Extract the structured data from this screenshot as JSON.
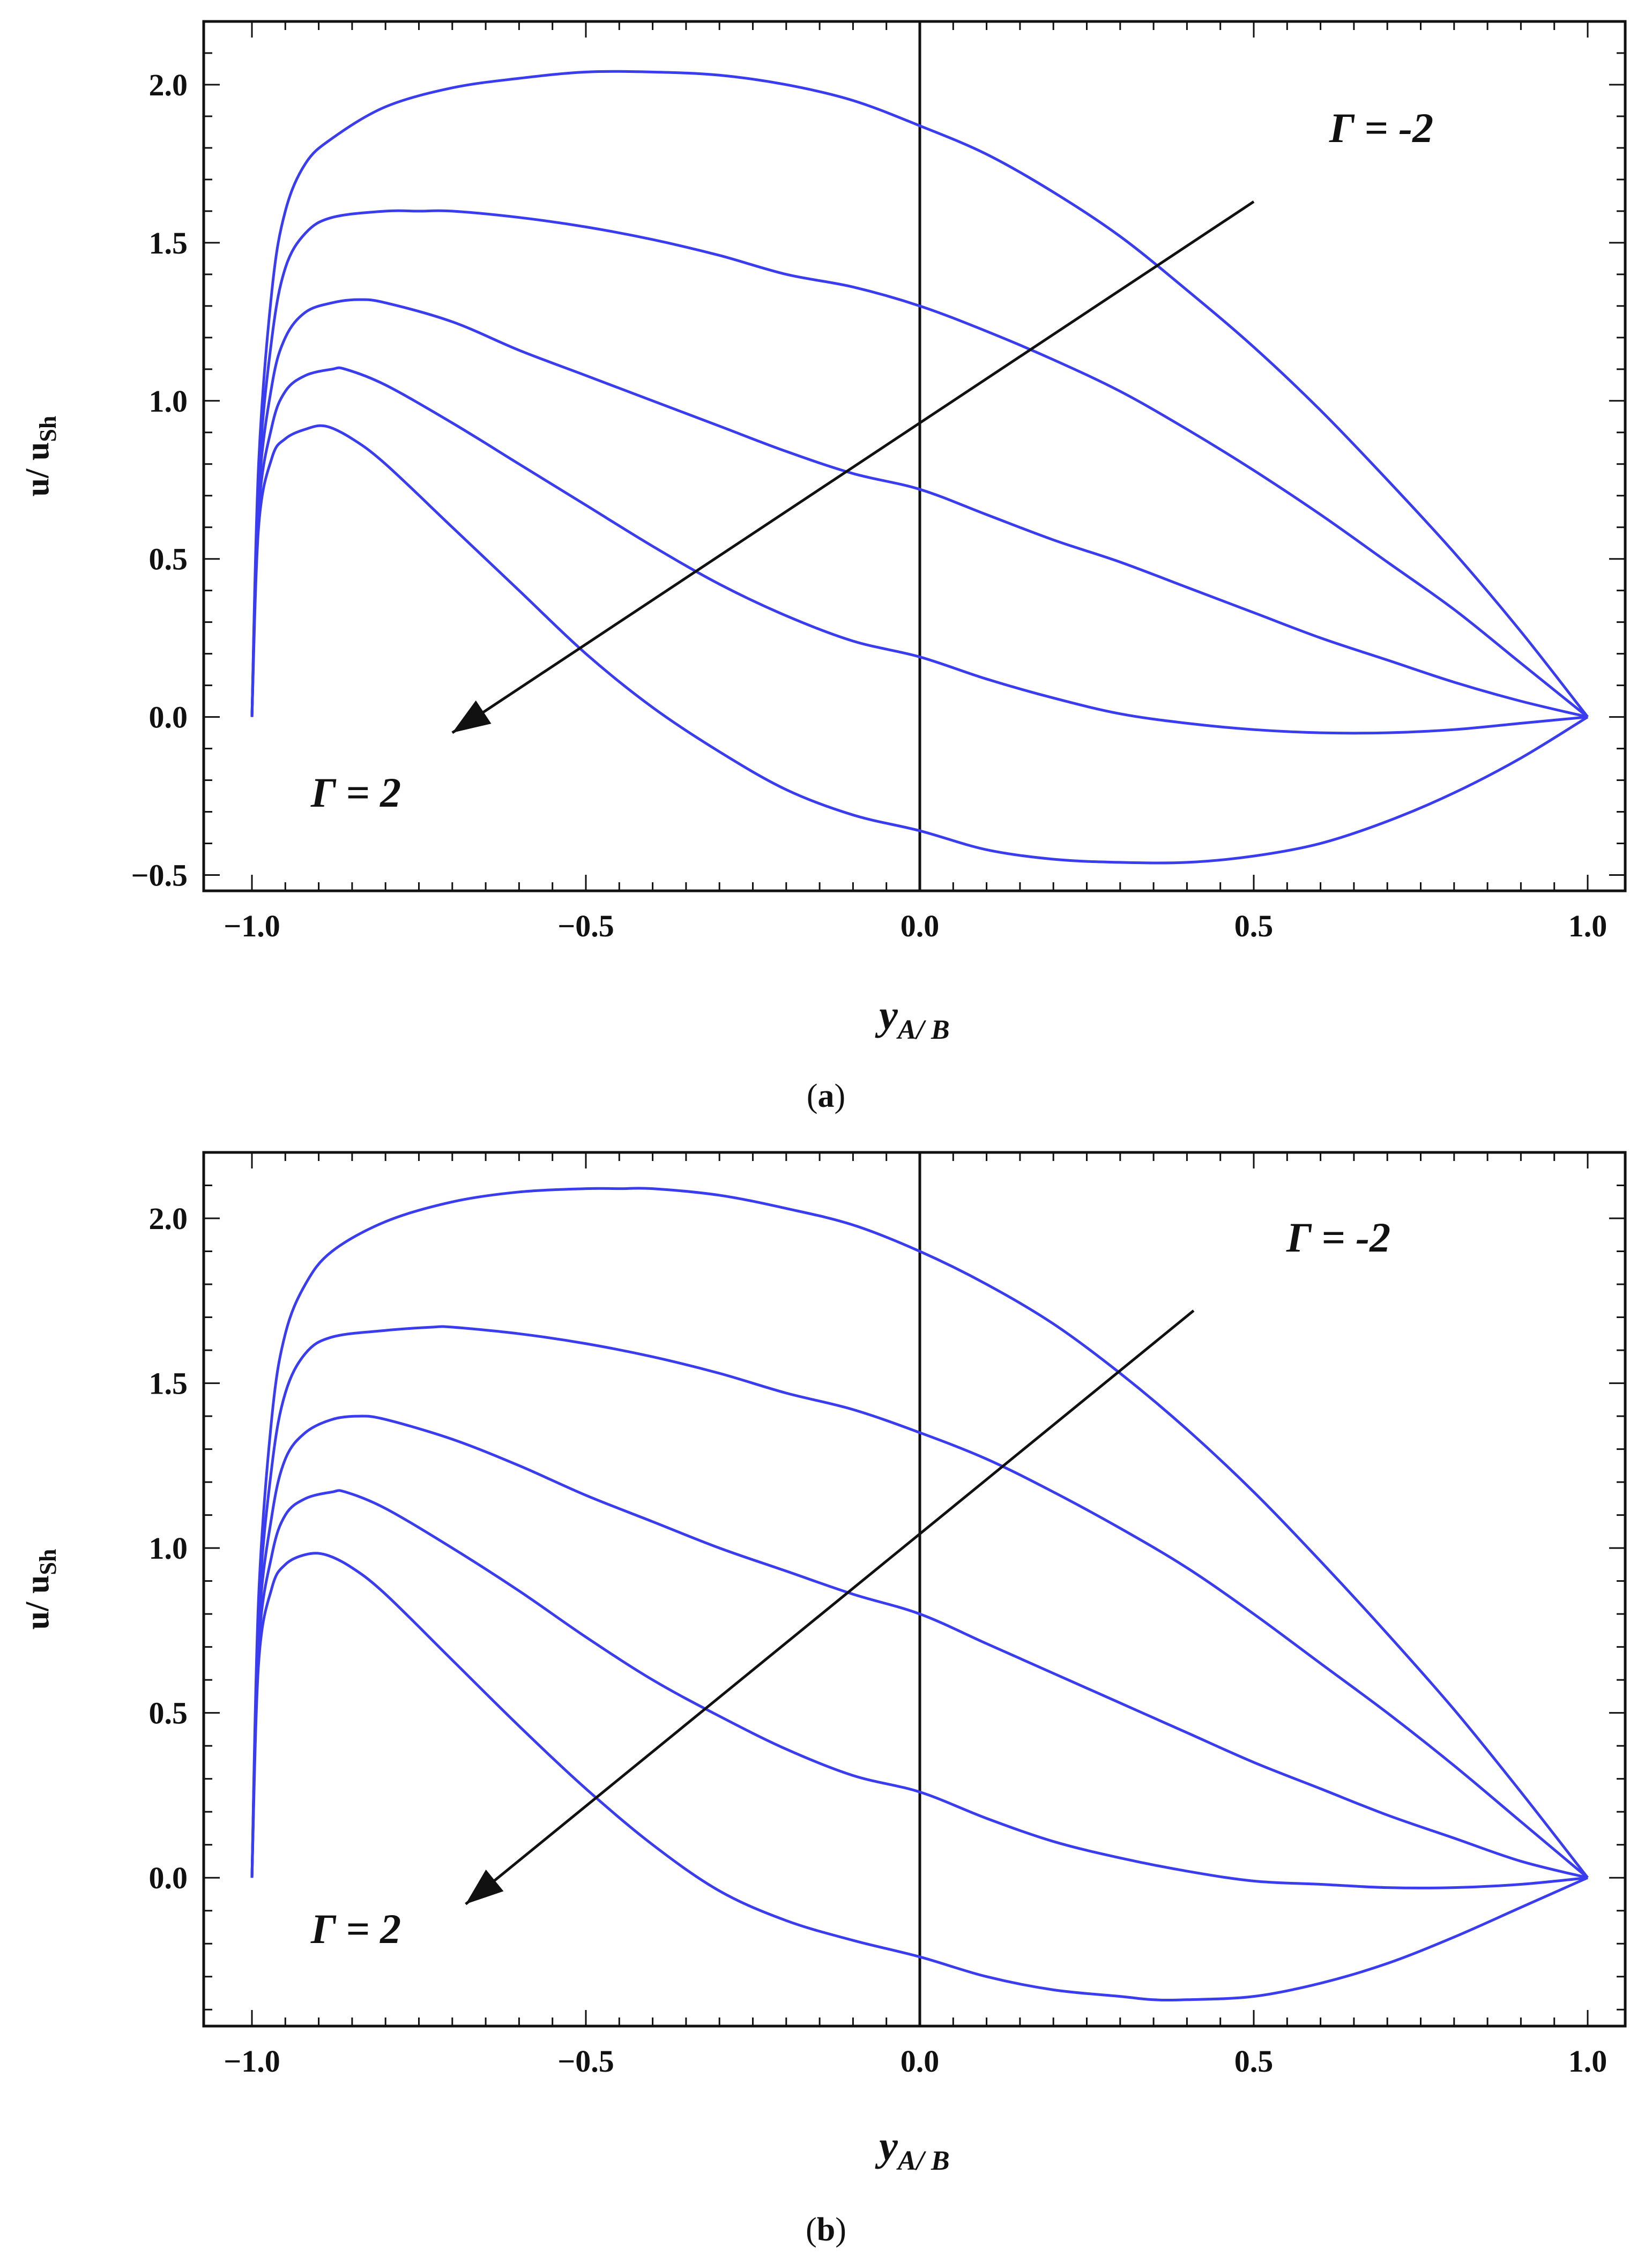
{
  "chart_data": [
    {
      "type": "line",
      "panel_label": "a",
      "caption_prefix": "(",
      "caption_suffix": ")",
      "xlabel": {
        "main": "y",
        "sub": "A/ B"
      },
      "ylabel": {
        "main": "u/ u",
        "sub": "Sh"
      },
      "xlim": [
        -1.0,
        1.0
      ],
      "ylim": [
        -0.55,
        2.2
      ],
      "xticks": [
        "−1.0",
        "−0.5",
        "0.0",
        "0.5",
        "1.0"
      ],
      "xtick_values": [
        -1.0,
        -0.5,
        0.0,
        0.5,
        1.0
      ],
      "yticks": [
        "−0.5",
        "0.0",
        "0.5",
        "1.0",
        "1.5",
        "2.0"
      ],
      "ytick_values": [
        -0.5,
        0.0,
        0.5,
        1.0,
        1.5,
        2.0
      ],
      "grid": false,
      "line_color": "#3a3cf0",
      "annotations": {
        "top": "Γ = -2",
        "bottom": "Γ = 2"
      },
      "arrow": {
        "from": [
          0.5,
          1.63
        ],
        "to": [
          -0.7,
          -0.05
        ]
      },
      "series": [
        {
          "x": [
            -1.0,
            -0.99,
            -0.97,
            -0.95,
            -0.92,
            -0.88,
            -0.8,
            -0.7,
            -0.6,
            -0.5,
            -0.4,
            -0.3,
            -0.2,
            -0.1,
            0.0,
            0.1,
            0.2,
            0.3,
            0.4,
            0.5,
            0.6,
            0.7,
            0.8,
            0.9,
            1.0
          ],
          "y": [
            0.0,
            0.8,
            1.35,
            1.6,
            1.75,
            1.83,
            1.93,
            1.99,
            2.02,
            2.04,
            2.04,
            2.03,
            2.0,
            1.95,
            1.87,
            1.78,
            1.66,
            1.52,
            1.35,
            1.17,
            0.97,
            0.75,
            0.52,
            0.27,
            0.0
          ]
        },
        {
          "x": [
            -1.0,
            -0.99,
            -0.97,
            -0.95,
            -0.92,
            -0.88,
            -0.8,
            -0.75,
            -0.7,
            -0.6,
            -0.5,
            -0.4,
            -0.3,
            -0.2,
            -0.1,
            0.0,
            0.1,
            0.2,
            0.3,
            0.4,
            0.5,
            0.6,
            0.7,
            0.8,
            0.9,
            1.0
          ],
          "y": [
            0.0,
            0.75,
            1.2,
            1.42,
            1.53,
            1.58,
            1.6,
            1.6,
            1.6,
            1.58,
            1.55,
            1.51,
            1.46,
            1.4,
            1.36,
            1.3,
            1.22,
            1.13,
            1.03,
            0.91,
            0.78,
            0.64,
            0.49,
            0.34,
            0.17,
            0.0
          ]
        },
        {
          "x": [
            -1.0,
            -0.99,
            -0.97,
            -0.95,
            -0.92,
            -0.88,
            -0.84,
            -0.8,
            -0.7,
            -0.6,
            -0.5,
            -0.4,
            -0.3,
            -0.2,
            -0.1,
            0.0,
            0.1,
            0.2,
            0.3,
            0.4,
            0.5,
            0.6,
            0.7,
            0.8,
            0.9,
            1.0
          ],
          "y": [
            0.0,
            0.7,
            1.05,
            1.2,
            1.28,
            1.31,
            1.32,
            1.31,
            1.25,
            1.16,
            1.08,
            1.0,
            0.92,
            0.84,
            0.77,
            0.72,
            0.64,
            0.56,
            0.49,
            0.41,
            0.33,
            0.25,
            0.18,
            0.11,
            0.05,
            0.0
          ]
        },
        {
          "x": [
            -1.0,
            -0.99,
            -0.97,
            -0.95,
            -0.92,
            -0.88,
            -0.86,
            -0.8,
            -0.7,
            -0.6,
            -0.5,
            -0.4,
            -0.3,
            -0.2,
            -0.1,
            0.0,
            0.1,
            0.2,
            0.3,
            0.4,
            0.5,
            0.6,
            0.7,
            0.8,
            0.9,
            1.0
          ],
          "y": [
            0.0,
            0.65,
            0.92,
            1.03,
            1.08,
            1.1,
            1.1,
            1.05,
            0.93,
            0.8,
            0.67,
            0.54,
            0.42,
            0.32,
            0.24,
            0.19,
            0.12,
            0.06,
            0.01,
            -0.02,
            -0.04,
            -0.05,
            -0.05,
            -0.04,
            -0.02,
            0.0
          ]
        },
        {
          "x": [
            -1.0,
            -0.99,
            -0.97,
            -0.95,
            -0.92,
            -0.89,
            -0.85,
            -0.8,
            -0.7,
            -0.6,
            -0.5,
            -0.4,
            -0.3,
            -0.2,
            -0.1,
            0.0,
            0.1,
            0.2,
            0.3,
            0.4,
            0.5,
            0.6,
            0.7,
            0.8,
            0.9,
            1.0
          ],
          "y": [
            0.0,
            0.6,
            0.82,
            0.88,
            0.91,
            0.92,
            0.88,
            0.8,
            0.6,
            0.4,
            0.2,
            0.03,
            -0.11,
            -0.23,
            -0.31,
            -0.36,
            -0.42,
            -0.45,
            -0.46,
            -0.46,
            -0.44,
            -0.4,
            -0.33,
            -0.24,
            -0.13,
            0.0
          ]
        }
      ]
    },
    {
      "type": "line",
      "panel_label": "b",
      "caption_prefix": "(",
      "caption_suffix": ")",
      "xlabel": {
        "main": "y",
        "sub": "A/ B"
      },
      "ylabel": {
        "main": "u/ u",
        "sub": "Sh"
      },
      "xlim": [
        -1.0,
        1.0
      ],
      "ylim": [
        -0.45,
        2.2
      ],
      "xticks": [
        "−1.0",
        "−0.5",
        "0.0",
        "0.5",
        "1.0"
      ],
      "xtick_values": [
        -1.0,
        -0.5,
        0.0,
        0.5,
        1.0
      ],
      "yticks": [
        "0.0",
        "0.5",
        "1.0",
        "1.5",
        "2.0"
      ],
      "ytick_values": [
        0.0,
        0.5,
        1.0,
        1.5,
        2.0
      ],
      "grid": false,
      "line_color": "#3a3cf0",
      "annotations": {
        "top": "Γ = -2",
        "bottom": "Γ = 2"
      },
      "arrow": {
        "from": [
          0.41,
          1.72
        ],
        "to": [
          -0.68,
          -0.08
        ]
      },
      "series": [
        {
          "x": [
            -1.0,
            -0.99,
            -0.97,
            -0.95,
            -0.92,
            -0.88,
            -0.8,
            -0.7,
            -0.6,
            -0.5,
            -0.45,
            -0.4,
            -0.3,
            -0.2,
            -0.1,
            0.0,
            0.1,
            0.2,
            0.3,
            0.4,
            0.5,
            0.6,
            0.7,
            0.8,
            0.9,
            1.0
          ],
          "y": [
            0.0,
            0.85,
            1.4,
            1.65,
            1.8,
            1.9,
            1.99,
            2.05,
            2.08,
            2.09,
            2.09,
            2.09,
            2.07,
            2.03,
            1.98,
            1.9,
            1.8,
            1.68,
            1.53,
            1.36,
            1.17,
            0.96,
            0.74,
            0.51,
            0.26,
            0.0
          ]
        },
        {
          "x": [
            -1.0,
            -0.99,
            -0.97,
            -0.95,
            -0.92,
            -0.88,
            -0.8,
            -0.73,
            -0.7,
            -0.6,
            -0.5,
            -0.4,
            -0.3,
            -0.2,
            -0.1,
            0.0,
            0.1,
            0.2,
            0.3,
            0.4,
            0.5,
            0.6,
            0.7,
            0.8,
            0.9,
            1.0
          ],
          "y": [
            0.0,
            0.8,
            1.25,
            1.47,
            1.59,
            1.64,
            1.66,
            1.67,
            1.67,
            1.65,
            1.62,
            1.58,
            1.53,
            1.47,
            1.42,
            1.35,
            1.27,
            1.17,
            1.06,
            0.94,
            0.8,
            0.65,
            0.5,
            0.34,
            0.17,
            0.0
          ]
        },
        {
          "x": [
            -1.0,
            -0.99,
            -0.97,
            -0.95,
            -0.92,
            -0.88,
            -0.84,
            -0.8,
            -0.7,
            -0.6,
            -0.5,
            -0.4,
            -0.3,
            -0.2,
            -0.1,
            0.0,
            0.1,
            0.2,
            0.3,
            0.4,
            0.5,
            0.6,
            0.7,
            0.8,
            0.9,
            1.0
          ],
          "y": [
            0.0,
            0.75,
            1.1,
            1.27,
            1.35,
            1.39,
            1.4,
            1.39,
            1.33,
            1.25,
            1.16,
            1.08,
            1.0,
            0.93,
            0.86,
            0.8,
            0.71,
            0.62,
            0.53,
            0.44,
            0.35,
            0.27,
            0.19,
            0.12,
            0.05,
            0.0
          ]
        },
        {
          "x": [
            -1.0,
            -0.99,
            -0.97,
            -0.95,
            -0.92,
            -0.88,
            -0.86,
            -0.8,
            -0.7,
            -0.6,
            -0.5,
            -0.4,
            -0.3,
            -0.2,
            -0.1,
            0.0,
            0.1,
            0.2,
            0.3,
            0.4,
            0.5,
            0.6,
            0.7,
            0.8,
            0.9,
            1.0
          ],
          "y": [
            0.0,
            0.7,
            0.98,
            1.1,
            1.15,
            1.17,
            1.17,
            1.12,
            1.0,
            0.87,
            0.73,
            0.6,
            0.49,
            0.39,
            0.31,
            0.26,
            0.18,
            0.11,
            0.06,
            0.02,
            -0.01,
            -0.02,
            -0.03,
            -0.03,
            -0.02,
            0.0
          ]
        },
        {
          "x": [
            -1.0,
            -0.99,
            -0.97,
            -0.95,
            -0.92,
            -0.89,
            -0.85,
            -0.8,
            -0.7,
            -0.6,
            -0.5,
            -0.4,
            -0.3,
            -0.2,
            -0.1,
            0.0,
            0.1,
            0.2,
            0.3,
            0.35,
            0.4,
            0.5,
            0.6,
            0.7,
            0.8,
            0.9,
            1.0
          ],
          "y": [
            0.0,
            0.65,
            0.88,
            0.95,
            0.98,
            0.98,
            0.94,
            0.86,
            0.66,
            0.46,
            0.27,
            0.1,
            -0.04,
            -0.13,
            -0.19,
            -0.24,
            -0.3,
            -0.34,
            -0.36,
            -0.37,
            -0.37,
            -0.36,
            -0.32,
            -0.26,
            -0.18,
            -0.09,
            0.0
          ]
        }
      ]
    }
  ]
}
